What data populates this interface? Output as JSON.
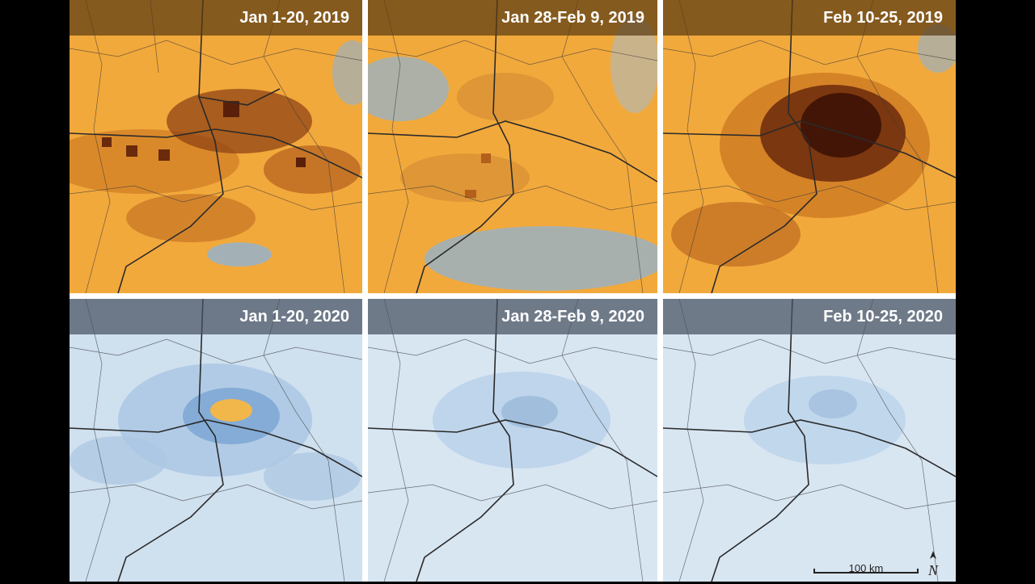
{
  "panels": [
    {
      "id": "p2019a",
      "label": "Jan 1-20, 2019",
      "year": "2019",
      "pollution_level": 0.85
    },
    {
      "id": "p2019b",
      "label": "Jan 28-Feb 9, 2019",
      "year": "2019",
      "pollution_level": 0.55
    },
    {
      "id": "p2019c",
      "label": "Feb 10-25, 2019",
      "year": "2019",
      "pollution_level": 0.95
    },
    {
      "id": "p2020a",
      "label": "Jan 1-20, 2020",
      "year": "2020",
      "pollution_level": 0.35
    },
    {
      "id": "p2020b",
      "label": "Jan 28-Feb 9, 2020",
      "year": "2020",
      "pollution_level": 0.12
    },
    {
      "id": "p2020c",
      "label": "Feb 10-25, 2020",
      "year": "2020",
      "pollution_level": 0.1
    }
  ],
  "scale": {
    "label": "100 km"
  },
  "north_arrow": {
    "label": "N",
    "icon": "north-arrow-icon"
  },
  "colors": {
    "orange": "#f2a93b",
    "dark_brown": "#4a1a08",
    "light_blue": "#cfe0ef",
    "blue": "#7fa9d4",
    "road": "#2a2a2a"
  }
}
